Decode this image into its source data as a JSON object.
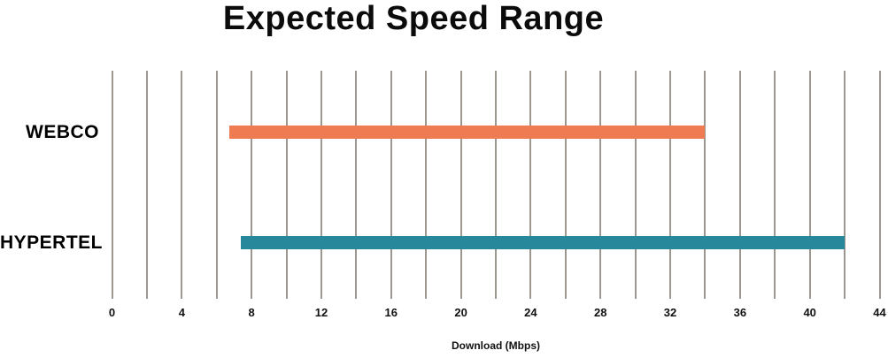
{
  "chart_data": {
    "type": "bar",
    "subtype": "horizontal_range_bar",
    "title": "Expected Speed Range",
    "xlabel": "Download (Mbps)",
    "ylabel": "",
    "categories": [
      "WEBCO",
      "HYPERTEL"
    ],
    "series": [
      {
        "name": "WEBCO",
        "range": [
          6.7,
          34
        ],
        "color": "#EF7B52"
      },
      {
        "name": "HYPERTEL",
        "range": [
          7.4,
          42
        ],
        "color": "#27879B"
      }
    ],
    "xlim": [
      0,
      44
    ],
    "x_major_ticks": [
      0,
      4,
      8,
      12,
      16,
      20,
      24,
      28,
      32,
      36,
      40,
      44
    ],
    "x_tick_labels": [
      "0",
      "4",
      "8",
      "12",
      "16",
      "20",
      "24",
      "28",
      "32",
      "36",
      "40",
      "44"
    ],
    "x_gridline_step": 2,
    "grid": true,
    "legend": false,
    "colors": {
      "grid": "#9C978F",
      "text": "#000000",
      "background": "#FFFFFF"
    }
  }
}
